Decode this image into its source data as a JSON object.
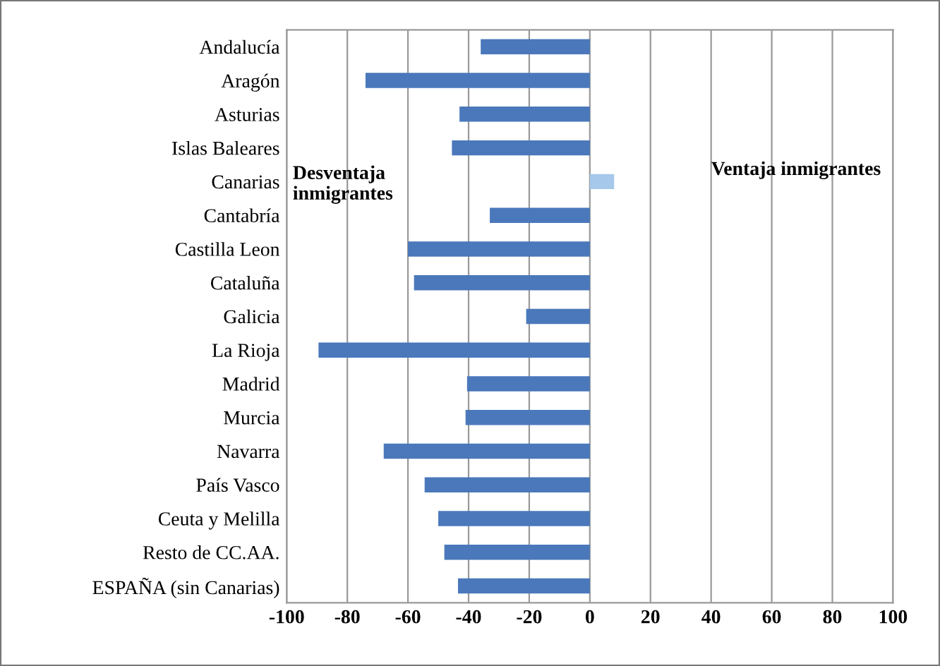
{
  "chart_data": {
    "type": "bar",
    "orientation": "horizontal",
    "categories": [
      "Andalucía",
      "Aragón",
      "Asturias",
      "Islas Baleares",
      "Canarias",
      "Cantabría",
      "Castilla Leon",
      "Cataluña",
      "Galicia",
      "La Rioja",
      "Madrid",
      "Murcia",
      "Navarra",
      "País Vasco",
      "Ceuta y Melilla",
      "Resto de CC.AA.",
      "ESPAÑA (sin Canarias)"
    ],
    "values": [
      -36,
      -74,
      -43,
      -45.5,
      8,
      -33,
      -60,
      -58,
      -21,
      -89.5,
      -40.5,
      -41,
      -68,
      -54.5,
      -50,
      -48,
      -43.5
    ],
    "colors": [
      "#4a78bb",
      "#4a78bb",
      "#4a78bb",
      "#4a78bb",
      "#a6c8ea",
      "#4a78bb",
      "#4a78bb",
      "#4a78bb",
      "#4a78bb",
      "#4a78bb",
      "#4a78bb",
      "#4a78bb",
      "#4a78bb",
      "#4a78bb",
      "#4a78bb",
      "#4a78bb",
      "#4a78bb"
    ],
    "xlim": [
      -100,
      100
    ],
    "xticks": [
      -100,
      -80,
      -60,
      -40,
      -20,
      0,
      20,
      40,
      60,
      80,
      100
    ],
    "grid": "x",
    "annotations": [
      "Desventaja\ninmigrantes",
      "Ventaja inmigrantes"
    ]
  }
}
